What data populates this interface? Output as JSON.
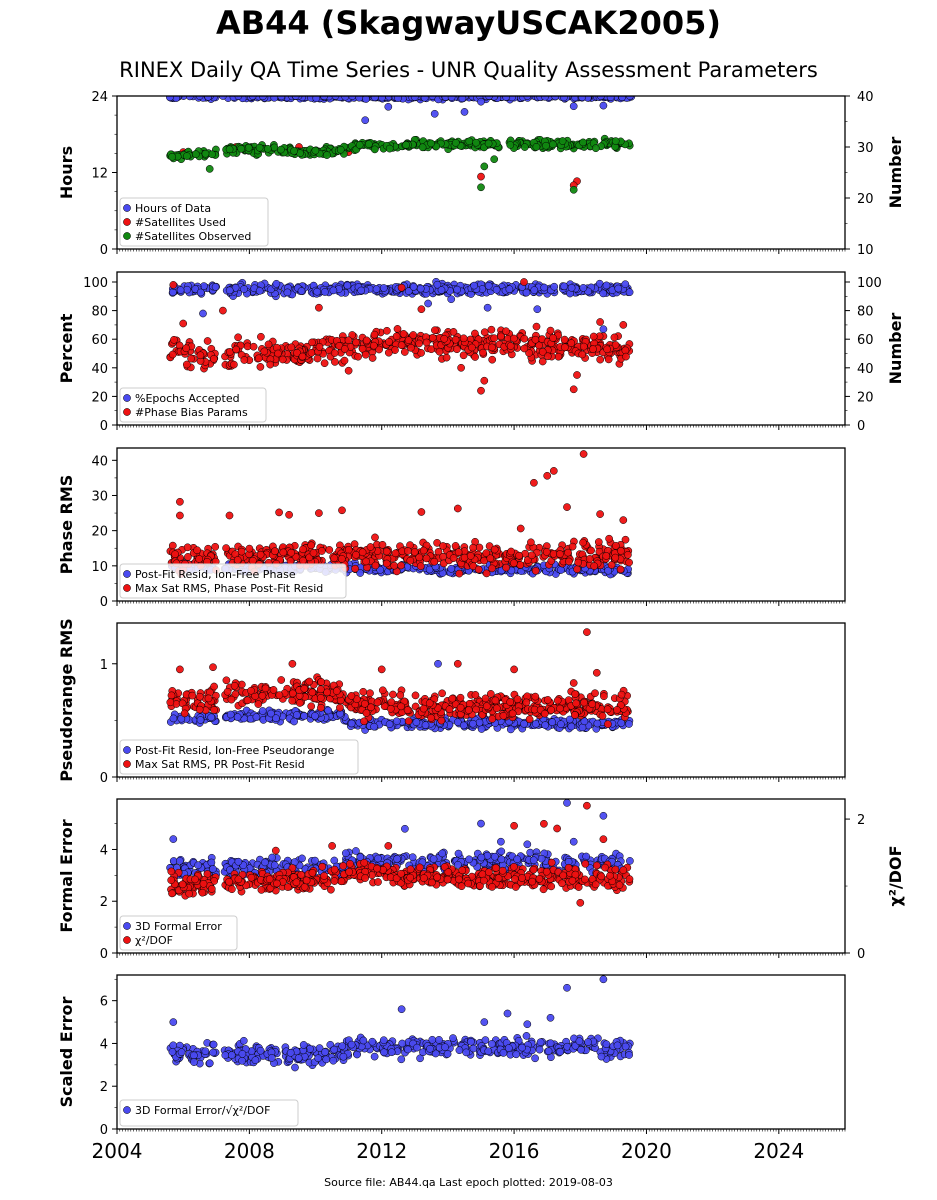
{
  "title": "AB44 (SkagwayUSCAK2005)",
  "subtitle": "RINEX Daily QA Time Series - UNR Quality Assessment Parameters",
  "footer": "Source file: AB44.qa Last epoch plotted: 2019-08-03",
  "colors": {
    "blue": "#4a4af0",
    "red": "#ee1111",
    "green": "#118811"
  },
  "chart_data": [
    {
      "type": "scatter",
      "ylabel": "Hours",
      "ylabel_right": "Number",
      "ylim": [
        0,
        24
      ],
      "yticks": [
        0,
        12,
        24
      ],
      "ylim_right": [
        10,
        40
      ],
      "yticks_right": [
        10,
        20,
        30,
        40
      ],
      "xlim": [
        2004,
        2026
      ],
      "xticks": [
        2004,
        2008,
        2012,
        2016,
        2020,
        2024
      ],
      "series": [
        {
          "name": "Hours of Data",
          "color": "#4a4af0",
          "axis": "left",
          "points": [
            [
              2005.6,
              23.8
            ],
            [
              2006.5,
              24
            ],
            [
              2007.2,
              24
            ],
            [
              2008.1,
              24
            ],
            [
              2009.4,
              24
            ],
            [
              2010.6,
              24
            ],
            [
              2011.5,
              20.2
            ],
            [
              2012.2,
              22.3
            ],
            [
              2013.6,
              21.2
            ],
            [
              2014.5,
              21.5
            ],
            [
              2015.0,
              23.1
            ],
            [
              2016.4,
              24
            ],
            [
              2017.8,
              22.4
            ],
            [
              2018.7,
              22.5
            ],
            [
              2019.5,
              24
            ]
          ],
          "band": {
            "x0": 2005.6,
            "x1": 2019.55,
            "y": 24,
            "spread": 0.3,
            "n": 380,
            "seed": 11
          }
        },
        {
          "name": "#Satellites Used",
          "color": "#ee1111",
          "axis": "right",
          "points": [
            [
              2006.0,
              29
            ],
            [
              2007.6,
              30
            ],
            [
              2009.5,
              30
            ],
            [
              2011.0,
              29
            ],
            [
              2015.0,
              24.2
            ],
            [
              2017.9,
              23.3
            ],
            [
              2017.8,
              22.5
            ]
          ]
        },
        {
          "name": "#Satellites Observed",
          "color": "#118811",
          "axis": "right",
          "points": [
            [
              2006.8,
              25.7
            ],
            [
              2015.0,
              22.1
            ],
            [
              2015.1,
              26.2
            ],
            [
              2017.8,
              21.6
            ],
            [
              2015.4,
              27.6
            ]
          ],
          "trend": [
            [
              2005.6,
              28.2
            ],
            [
              2007.0,
              28.8
            ],
            [
              2007.2,
              29.6
            ],
            [
              2009.2,
              29.4
            ],
            [
              2009.6,
              28.7
            ],
            [
              2010.8,
              29.3
            ],
            [
              2011.2,
              30.3
            ],
            [
              2012.5,
              30.0
            ],
            [
              2013.0,
              30.6
            ],
            [
              2019.5,
              30.5
            ]
          ],
          "spread": 0.55,
          "n": 430,
          "seed": 21
        }
      ]
    },
    {
      "type": "scatter",
      "ylabel": "Percent",
      "ylabel_right": "Number",
      "ylim": [
        0,
        107
      ],
      "yticks": [
        0,
        20,
        40,
        60,
        80,
        100
      ],
      "ylim_right": [
        0,
        107
      ],
      "yticks_right": [
        0,
        20,
        40,
        60,
        80,
        100
      ],
      "xlim": [
        2004,
        2026
      ],
      "xticks": [
        2004,
        2008,
        2012,
        2016,
        2020,
        2024
      ],
      "series": [
        {
          "name": "%Epochs Accepted",
          "color": "#4a4af0",
          "axis": "left",
          "points": [
            [
              2006.6,
              78
            ],
            [
              2013.4,
              85
            ],
            [
              2015.2,
              82
            ],
            [
              2016.7,
              81
            ],
            [
              2018.7,
              67
            ],
            [
              2014.1,
              88
            ]
          ],
          "trend": [
            [
              2005.6,
              95
            ],
            [
              2019.5,
              95
            ]
          ],
          "spread": 2.5,
          "n": 480,
          "seed": 31
        },
        {
          "name": "#Phase Bias Params",
          "color": "#ee1111",
          "axis": "right",
          "points": [
            [
              2005.7,
              98
            ],
            [
              2006.0,
              71
            ],
            [
              2007.2,
              80
            ],
            [
              2010.1,
              82
            ],
            [
              2011.0,
              38
            ],
            [
              2012.6,
              96
            ],
            [
              2013.2,
              81
            ],
            [
              2014.4,
              40
            ],
            [
              2015.0,
              24
            ],
            [
              2015.1,
              31
            ],
            [
              2016.3,
              100
            ],
            [
              2017.1,
              66
            ],
            [
              2017.8,
              25
            ],
            [
              2017.9,
              35
            ],
            [
              2018.6,
              72
            ],
            [
              2019.3,
              70
            ]
          ],
          "trend": [
            [
              2005.6,
              49
            ],
            [
              2007.0,
              48
            ],
            [
              2007.3,
              52
            ],
            [
              2009.0,
              49
            ],
            [
              2010.0,
              51
            ],
            [
              2011.0,
              56
            ],
            [
              2013.0,
              58
            ],
            [
              2015.5,
              57
            ],
            [
              2017.0,
              55
            ],
            [
              2019.5,
              53
            ]
          ],
          "spread": 6.5,
          "n": 540,
          "seed": 41
        }
      ]
    },
    {
      "type": "scatter",
      "ylabel": "Phase RMS",
      "ylim": [
        0,
        43.5
      ],
      "yticks": [
        0,
        10,
        20,
        30,
        40
      ],
      "xlim": [
        2004,
        2026
      ],
      "xticks": [
        2004,
        2008,
        2012,
        2016,
        2020,
        2024
      ],
      "series": [
        {
          "name": "Post-Fit Resid, Ion-Free Phase",
          "color": "#4a4af0",
          "axis": "left",
          "points": [],
          "trend": [
            [
              2005.6,
              9.6
            ],
            [
              2019.5,
              8.8
            ]
          ],
          "spread": 0.8,
          "n": 380,
          "seed": 51
        },
        {
          "name": "Max Sat RMS, Phase Post-Fit Resid",
          "color": "#ee1111",
          "axis": "left",
          "points": [
            [
              2005.9,
              28.2
            ],
            [
              2005.9,
              24.3
            ],
            [
              2007.4,
              24.3
            ],
            [
              2008.9,
              25.2
            ],
            [
              2009.2,
              24.5
            ],
            [
              2010.1,
              25.0
            ],
            [
              2010.8,
              25.8
            ],
            [
              2013.2,
              25.3
            ],
            [
              2014.3,
              26.3
            ],
            [
              2016.6,
              33.6
            ],
            [
              2017.0,
              35.6
            ],
            [
              2017.2,
              37.0
            ],
            [
              2018.1,
              41.8
            ],
            [
              2017.6,
              26.7
            ],
            [
              2018.6,
              24.7
            ],
            [
              2019.3,
              23.0
            ],
            [
              2016.2,
              20.6
            ]
          ],
          "trend": [
            [
              2005.6,
              12.5
            ],
            [
              2007.0,
              12.0
            ],
            [
              2007.3,
              12.5
            ],
            [
              2019.5,
              13.0
            ]
          ],
          "spread": 2.6,
          "n": 520,
          "seed": 61
        }
      ]
    },
    {
      "type": "scatter",
      "ylabel": "Pseudorange RMS",
      "ylim": [
        0,
        1.36
      ],
      "yticks": [
        0,
        1
      ],
      "xlim": [
        2004,
        2026
      ],
      "xticks": [
        2004,
        2008,
        2012,
        2016,
        2020,
        2024
      ],
      "series": [
        {
          "name": "Post-Fit Resid, Ion-Free Pseudorange",
          "color": "#4a4af0",
          "axis": "left",
          "points": [
            [
              2013.7,
              1.0
            ],
            [
              2015.9,
              0.42
            ]
          ],
          "trend": [
            [
              2005.6,
              0.52
            ],
            [
              2010.8,
              0.55
            ],
            [
              2011.0,
              0.47
            ],
            [
              2019.5,
              0.47
            ]
          ],
          "spread": 0.03,
          "n": 420,
          "seed": 71
        },
        {
          "name": "Max Sat RMS, PR Post-Fit Resid",
          "color": "#ee1111",
          "axis": "left",
          "points": [
            [
              2005.9,
              0.95
            ],
            [
              2006.9,
              0.97
            ],
            [
              2009.3,
              1.0
            ],
            [
              2012.0,
              0.95
            ],
            [
              2014.3,
              1.0
            ],
            [
              2016.0,
              0.95
            ],
            [
              2017.8,
              0.83
            ],
            [
              2018.2,
              1.28
            ],
            [
              2018.5,
              0.92
            ]
          ],
          "trend": [
            [
              2005.6,
              0.68
            ],
            [
              2007.0,
              0.67
            ],
            [
              2007.3,
              0.74
            ],
            [
              2010.8,
              0.73
            ],
            [
              2011.0,
              0.63
            ],
            [
              2019.5,
              0.62
            ]
          ],
          "spread": 0.08,
          "n": 560,
          "seed": 81
        }
      ]
    },
    {
      "type": "scatter",
      "ylabel": "Formal Error",
      "ylabel_right": "χ²/DOF",
      "ylim": [
        0,
        5.95
      ],
      "yticks": [
        0,
        2,
        4
      ],
      "ylim_right": [
        0,
        2.3
      ],
      "yticks_right": [
        0,
        2
      ],
      "xlim": [
        2004,
        2026
      ],
      "xticks": [
        2004,
        2008,
        2012,
        2016,
        2020,
        2024
      ],
      "series": [
        {
          "name": "3D Formal Error",
          "color": "#4a4af0",
          "axis": "left",
          "points": [
            [
              2005.7,
              4.4
            ],
            [
              2012.7,
              4.8
            ],
            [
              2015.0,
              5.0
            ],
            [
              2015.6,
              4.3
            ],
            [
              2016.4,
              4.2
            ],
            [
              2017.6,
              5.8
            ],
            [
              2018.7,
              5.3
            ],
            [
              2017.8,
              4.3
            ]
          ],
          "trend": [
            [
              2005.6,
              3.3
            ],
            [
              2010.8,
              3.3
            ],
            [
              2011.0,
              3.55
            ],
            [
              2019.5,
              3.5
            ]
          ],
          "spread": 0.25,
          "n": 420,
          "seed": 91
        },
        {
          "name": "χ²/DOF",
          "color": "#ee1111",
          "axis": "right",
          "points": [
            [
              2008.8,
              1.53
            ],
            [
              2010.5,
              1.6
            ],
            [
              2012.2,
              1.6
            ],
            [
              2016.0,
              1.9
            ],
            [
              2016.9,
              1.93
            ],
            [
              2017.3,
              1.86
            ],
            [
              2018.2,
              2.2
            ],
            [
              2018.7,
              1.7
            ],
            [
              2018.0,
              0.75
            ]
          ],
          "trend": [
            [
              2005.6,
              1.05
            ],
            [
              2007.0,
              1.0
            ],
            [
              2007.3,
              1.05
            ],
            [
              2010.8,
              1.12
            ],
            [
              2011.0,
              1.22
            ],
            [
              2013.0,
              1.15
            ],
            [
              2019.5,
              1.12
            ]
          ],
          "spread": 0.11,
          "n": 560,
          "seed": 101
        }
      ]
    },
    {
      "type": "scatter",
      "ylabel": "Scaled Error",
      "ylim": [
        0,
        7.2
      ],
      "yticks": [
        0,
        2,
        4,
        6
      ],
      "xlim": [
        2004,
        2026
      ],
      "xticks": [
        2004,
        2008,
        2012,
        2016,
        2020,
        2024
      ],
      "series": [
        {
          "name": "3D Formal Error/√χ²/DOF",
          "color": "#4a4af0",
          "axis": "left",
          "points": [
            [
              2005.7,
              5.0
            ],
            [
              2012.6,
              5.6
            ],
            [
              2015.1,
              5.0
            ],
            [
              2015.8,
              5.4
            ],
            [
              2017.1,
              5.2
            ],
            [
              2017.6,
              6.6
            ],
            [
              2018.7,
              7.0
            ],
            [
              2016.4,
              4.9
            ]
          ],
          "trend": [
            [
              2005.6,
              3.5
            ],
            [
              2010.8,
              3.5
            ],
            [
              2011.0,
              3.9
            ],
            [
              2019.5,
              3.8
            ]
          ],
          "spread": 0.32,
          "n": 480,
          "seed": 111
        }
      ]
    }
  ]
}
